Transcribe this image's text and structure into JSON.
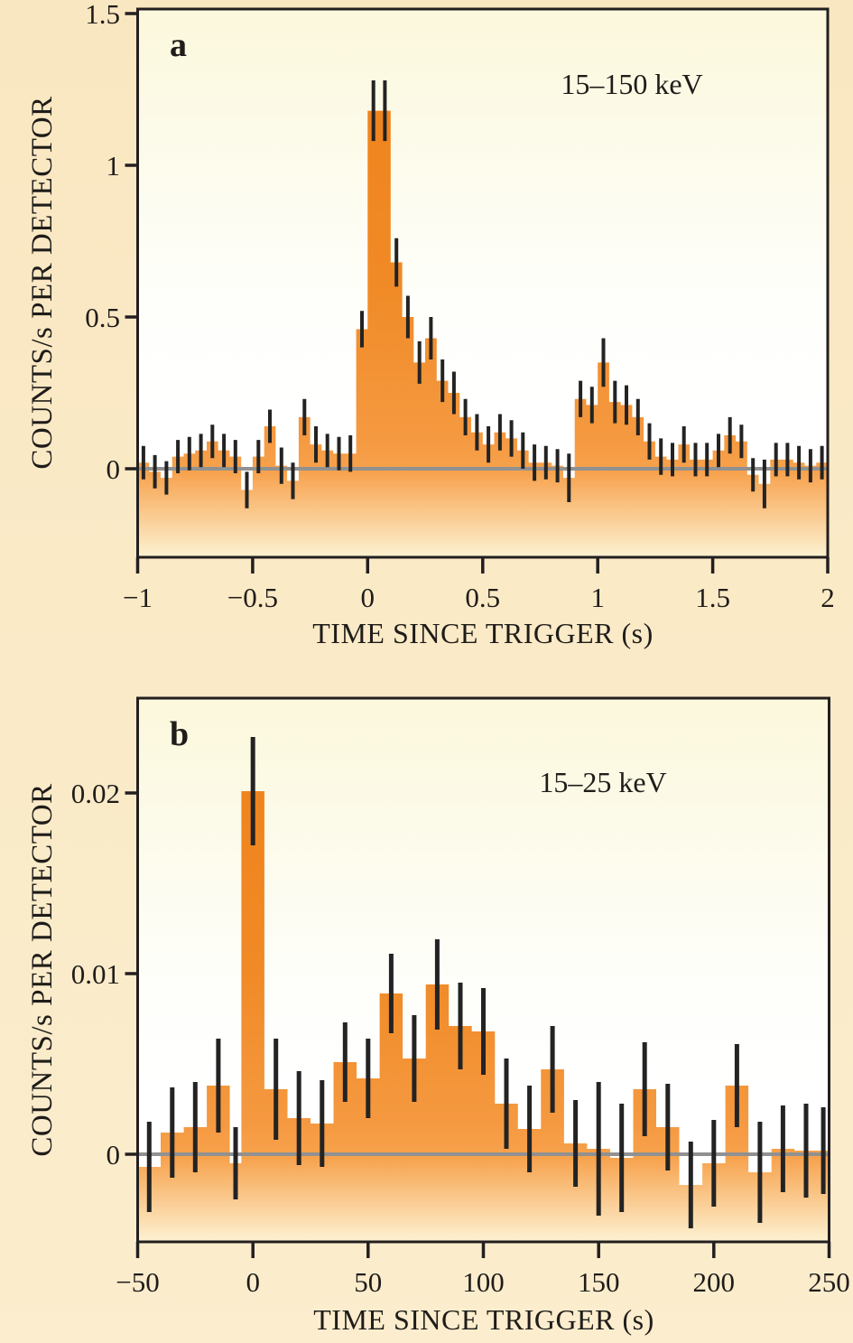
{
  "colors": {
    "page_background_top": "#f9e7c1",
    "page_background_bottom": "#fbedcd",
    "plot_background_top": "#fbf8dc",
    "plot_background_bottom": "#ffffff",
    "bar_orange": "#ef8119",
    "bar_orange_mid": "#f59940",
    "bar_fade_bottom": "#fdf2d2",
    "zero_line": "#919191",
    "frame": "#231f20",
    "error_bar": "#232323",
    "text": "#1f1c1a"
  },
  "chart_data": [
    {
      "type": "bar",
      "subtype": "histogram-light-curve",
      "panel_label": "a",
      "annotation": "15–150 keV",
      "xlabel": "TIME SINCE TRIGGER (s)",
      "ylabel": "COUNTS/s PER DETECTOR",
      "xlim": [
        -1,
        2
      ],
      "ylim": [
        -0.2917,
        1.515
      ],
      "x_ticks": {
        "values": [
          -1,
          -0.5,
          0,
          0.5,
          1,
          1.5,
          2
        ],
        "labels": [
          "−1",
          "−0.5",
          "0",
          "0.5",
          "1",
          "1.5",
          "2"
        ]
      },
      "y_ticks": {
        "values": [
          0,
          0.5,
          1,
          1.5
        ],
        "labels": [
          "0",
          "0.5",
          "1",
          "1.5"
        ]
      },
      "zero_line": true,
      "bins_format": [
        "t_start_s",
        "t_end_s",
        "counts_per_s",
        "error"
      ],
      "bins": [
        [
          -1.0,
          -0.95,
          0.02,
          0.055
        ],
        [
          -0.95,
          -0.9,
          -0.01,
          0.055
        ],
        [
          -0.9,
          -0.85,
          -0.03,
          0.055
        ],
        [
          -0.85,
          -0.8,
          0.04,
          0.055
        ],
        [
          -0.8,
          -0.75,
          0.05,
          0.055
        ],
        [
          -0.75,
          -0.7,
          0.06,
          0.055
        ],
        [
          -0.7,
          -0.65,
          0.09,
          0.055
        ],
        [
          -0.65,
          -0.6,
          0.06,
          0.055
        ],
        [
          -0.6,
          -0.55,
          0.04,
          0.055
        ],
        [
          -0.55,
          -0.5,
          -0.07,
          0.06
        ],
        [
          -0.5,
          -0.45,
          0.04,
          0.055
        ],
        [
          -0.45,
          -0.4,
          0.14,
          0.055
        ],
        [
          -0.4,
          -0.35,
          0.01,
          0.06
        ],
        [
          -0.35,
          -0.3,
          -0.04,
          0.06
        ],
        [
          -0.3,
          -0.25,
          0.17,
          0.06
        ],
        [
          -0.25,
          -0.2,
          0.08,
          0.06
        ],
        [
          -0.2,
          -0.15,
          0.06,
          0.055
        ],
        [
          -0.15,
          -0.1,
          0.05,
          0.055
        ],
        [
          -0.1,
          -0.05,
          0.05,
          0.06
        ],
        [
          -0.05,
          0.0,
          0.46,
          0.06
        ],
        [
          0.0,
          0.05,
          1.18,
          0.1
        ],
        [
          0.05,
          0.1,
          1.18,
          0.1
        ],
        [
          0.1,
          0.15,
          0.68,
          0.08
        ],
        [
          0.15,
          0.2,
          0.5,
          0.07
        ],
        [
          0.2,
          0.25,
          0.35,
          0.07
        ],
        [
          0.25,
          0.3,
          0.43,
          0.07
        ],
        [
          0.3,
          0.35,
          0.29,
          0.07
        ],
        [
          0.35,
          0.4,
          0.25,
          0.07
        ],
        [
          0.4,
          0.45,
          0.17,
          0.06
        ],
        [
          0.45,
          0.5,
          0.12,
          0.06
        ],
        [
          0.5,
          0.55,
          0.08,
          0.06
        ],
        [
          0.55,
          0.6,
          0.12,
          0.06
        ],
        [
          0.6,
          0.65,
          0.1,
          0.06
        ],
        [
          0.65,
          0.7,
          0.06,
          0.06
        ],
        [
          0.7,
          0.75,
          0.02,
          0.06
        ],
        [
          0.75,
          0.8,
          0.02,
          0.055
        ],
        [
          0.8,
          0.85,
          0.01,
          0.055
        ],
        [
          0.85,
          0.9,
          -0.03,
          0.08
        ],
        [
          0.9,
          0.95,
          0.23,
          0.06
        ],
        [
          0.95,
          1.0,
          0.21,
          0.06
        ],
        [
          1.0,
          1.05,
          0.35,
          0.08
        ],
        [
          1.05,
          1.1,
          0.22,
          0.07
        ],
        [
          1.1,
          1.15,
          0.21,
          0.065
        ],
        [
          1.15,
          1.2,
          0.17,
          0.06
        ],
        [
          1.2,
          1.25,
          0.09,
          0.06
        ],
        [
          1.25,
          1.3,
          0.04,
          0.06
        ],
        [
          1.3,
          1.35,
          0.03,
          0.055
        ],
        [
          1.35,
          1.4,
          0.08,
          0.06
        ],
        [
          1.4,
          1.45,
          0.03,
          0.055
        ],
        [
          1.45,
          1.5,
          0.03,
          0.055
        ],
        [
          1.5,
          1.55,
          0.06,
          0.055
        ],
        [
          1.55,
          1.6,
          0.11,
          0.06
        ],
        [
          1.6,
          1.65,
          0.09,
          0.055
        ],
        [
          1.65,
          1.7,
          -0.02,
          0.055
        ],
        [
          1.7,
          1.75,
          -0.05,
          0.08
        ],
        [
          1.75,
          1.8,
          0.03,
          0.055
        ],
        [
          1.8,
          1.85,
          0.03,
          0.055
        ],
        [
          1.85,
          1.9,
          0.02,
          0.055
        ],
        [
          1.9,
          1.95,
          0.01,
          0.055
        ],
        [
          1.95,
          2.0,
          0.02,
          0.055
        ]
      ]
    },
    {
      "type": "bar",
      "subtype": "histogram-light-curve",
      "panel_label": "b",
      "annotation": "15–25 keV",
      "xlabel": "TIME SINCE TRIGGER (s)",
      "ylabel": "COUNTS/s PER DETECTOR",
      "xlim": [
        -50,
        250
      ],
      "ylim": [
        -0.00485,
        0.02525
      ],
      "x_ticks": {
        "values": [
          -50,
          0,
          50,
          100,
          150,
          200,
          250
        ],
        "labels": [
          "−50",
          "0",
          "50",
          "100",
          "150",
          "200",
          "250"
        ]
      },
      "y_ticks": {
        "values": [
          0,
          0.01,
          0.02
        ],
        "labels": [
          "0",
          "0.01",
          "0.02"
        ]
      },
      "zero_line": true,
      "bins_format": [
        "t_start_s",
        "t_end_s",
        "counts_per_s",
        "error"
      ],
      "bins": [
        [
          -50,
          -40,
          -0.0007,
          0.0025
        ],
        [
          -40,
          -30,
          0.0012,
          0.0025
        ],
        [
          -30,
          -20,
          0.0015,
          0.0025
        ],
        [
          -20,
          -10,
          0.0038,
          0.0026
        ],
        [
          -10,
          -5,
          -0.0005,
          0.002
        ],
        [
          -5,
          5,
          0.0201,
          0.003
        ],
        [
          5,
          15,
          0.0036,
          0.0028
        ],
        [
          15,
          25,
          0.002,
          0.0026
        ],
        [
          25,
          35,
          0.0017,
          0.0024
        ],
        [
          35,
          45,
          0.0051,
          0.0022
        ],
        [
          45,
          55,
          0.0042,
          0.0022
        ],
        [
          55,
          65,
          0.0089,
          0.0022
        ],
        [
          65,
          75,
          0.0053,
          0.0024
        ],
        [
          75,
          85,
          0.0094,
          0.0025
        ],
        [
          85,
          95,
          0.0071,
          0.0024
        ],
        [
          95,
          105,
          0.0068,
          0.0024
        ],
        [
          105,
          115,
          0.0028,
          0.0025
        ],
        [
          115,
          125,
          0.0014,
          0.0024
        ],
        [
          125,
          135,
          0.0047,
          0.0024
        ],
        [
          135,
          145,
          0.0006,
          0.0024
        ],
        [
          145,
          155,
          0.0003,
          0.0037
        ],
        [
          155,
          165,
          -0.0002,
          0.003
        ],
        [
          165,
          175,
          0.0036,
          0.0026
        ],
        [
          175,
          185,
          0.0015,
          0.0024
        ],
        [
          185,
          195,
          -0.0017,
          0.0024
        ],
        [
          195,
          205,
          -0.0005,
          0.0024
        ],
        [
          205,
          215,
          0.0038,
          0.0023
        ],
        [
          215,
          225,
          -0.001,
          0.0028
        ],
        [
          225,
          235,
          0.0003,
          0.0024
        ],
        [
          235,
          245,
          0.0002,
          0.0026
        ],
        [
          245,
          250,
          0.0002,
          0.0024
        ]
      ]
    }
  ]
}
